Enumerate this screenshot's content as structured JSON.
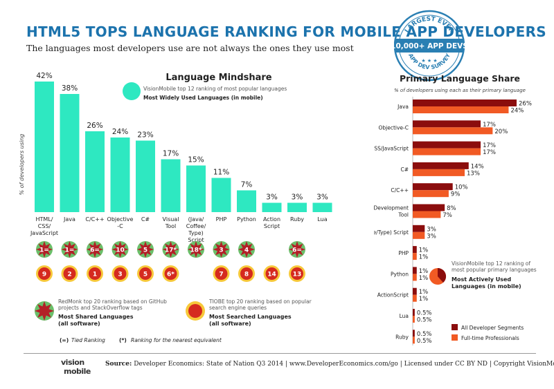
{
  "header": {
    "title": "HTML5 TOPS LANGUAGE RANKING FOR MOBILE APP DEVELOPERS",
    "subtitle": "The languages most developers use are not always the ones they use most"
  },
  "stamp": {
    "line1": "LARGEST EVER",
    "line2": "10,000+ APP DEVS",
    "line3": "APP DEV SURVEY"
  },
  "colors": {
    "teal": "#2ee8c1",
    "dark_red": "#8b0d0d",
    "orange": "#f15a24",
    "title_blue": "#1c73ad",
    "redmonk_green": "#6bbf6a",
    "redmonk_star": "#b32027",
    "tiobe_yellow": "#f7c83a",
    "tiobe_red": "#d52a1f"
  },
  "chart_data": [
    {
      "type": "bar",
      "title": "Language Mindshare",
      "ylabel": "% of developers using",
      "categories": [
        "HTML/ CSS/ JavaScript",
        "Java",
        "C/C++",
        "Objective -C",
        "C#",
        "Visual Tool",
        "(Java/ Coffee/ Type) Script",
        "PHP",
        "Python",
        "Action Script",
        "Ruby",
        "Lua"
      ],
      "values": [
        42,
        38,
        26,
        24,
        23,
        17,
        15,
        11,
        7,
        3,
        3,
        3
      ],
      "value_labels": [
        "42%",
        "38%",
        "26%",
        "24%",
        "23%",
        "17%",
        "15%",
        "11%",
        "7%",
        "3%",
        "3%",
        "3%"
      ],
      "ylim": [
        0,
        42
      ],
      "legend": {
        "source": "VisionMobile top 12 ranking of most popular languages",
        "name": "Most Widely Used Languages (in mobile)"
      },
      "redmonk_ranks": [
        "1=",
        "1=",
        "6=",
        "10",
        "5",
        "17*",
        "18*",
        "3",
        "4",
        "",
        "6=",
        ""
      ],
      "tiobe_ranks": [
        "9",
        "2",
        "1",
        "3",
        "5",
        "6*",
        "",
        "7",
        "8",
        "14",
        "13",
        ""
      ],
      "redmonk_legend": {
        "source": "RedMonk top 20 ranking based on GitHub projects and StackOverflow tags",
        "name": "Most Shared Languages",
        "note": "(all software)"
      },
      "tiobe_legend": {
        "source": "TIOBE top 20 ranking based on popular search engine queries",
        "name": "Most Searched Languages",
        "note": "(all software)"
      },
      "notes": {
        "tied_symbol": "(=)",
        "tied_text": "Tied Ranking",
        "approx_symbol": "(*)",
        "approx_text": "Ranking for the nearest equivalent"
      }
    },
    {
      "type": "bar",
      "orientation": "horizontal",
      "title": "Primary Language Share",
      "subtitle": "% of developers using each as their primary language",
      "categories": [
        "Java",
        "Objective-C",
        "HTML/CSS/JavaScript",
        "C#",
        "C/C++",
        "Visual Development Tool",
        "(Java/Coffee/Type) Script",
        "PHP",
        "Python",
        "ActionScript",
        "Lua",
        "Ruby"
      ],
      "xlim": [
        0,
        26
      ],
      "series": [
        {
          "name": "All Developer Segments",
          "values": [
            26,
            17,
            17,
            14,
            10,
            8,
            3,
            1,
            1,
            1,
            0.5,
            0.5
          ],
          "labels": [
            "26%",
            "17%",
            "17%",
            "14%",
            "10%",
            "8%",
            "3%",
            "1%",
            "1%",
            "1%",
            "0.5%",
            "0.5%"
          ]
        },
        {
          "name": "Full-time Professionals",
          "values": [
            24,
            20,
            17,
            13,
            9,
            7,
            3,
            1,
            1,
            1,
            0.5,
            0.5
          ],
          "labels": [
            "24%",
            "20%",
            "17%",
            "13%",
            "9%",
            "7%",
            "3%",
            "1%",
            "1%",
            "1%",
            "0.5%",
            "0.5%"
          ]
        }
      ],
      "legend": {
        "source": "VisionMobile top 12 ranking of most popular primary languages",
        "name": "Most Actively Used Languages (in mobile)"
      }
    }
  ],
  "footer": {
    "logo_top": "vision",
    "logo_bottom": "mobile",
    "source_label": "Source:",
    "text": "Developer Economics: State of Nation Q3 2014 | www.DeveloperEconomics.com/go   |   Licensed under CC BY ND | Copyright VisionMobile"
  }
}
